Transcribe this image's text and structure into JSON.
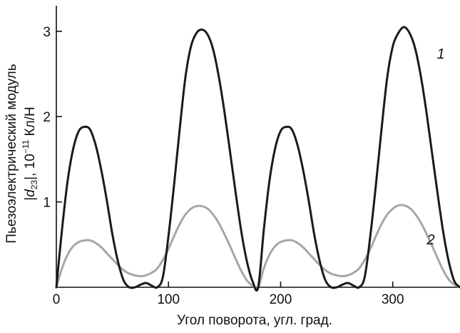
{
  "chart_data": {
    "type": "line",
    "xlabel": "Угол поворота, угл. град.",
    "ylabel_line1": "Пьезоэлектрический модуль",
    "ylabel_line2": {
      "prefix": "|",
      "symbol": "d",
      "subscript": "23",
      "suffix": "|, 10",
      "exponent": "−11",
      "unit": " Кл/Н"
    },
    "xlim": [
      0,
      360
    ],
    "ylim": [
      0,
      3.3
    ],
    "xticks": [
      0,
      100,
      200,
      300
    ],
    "yticks": [
      1,
      2,
      3
    ],
    "xtick_labels": [
      "0",
      "100",
      "200",
      "300"
    ],
    "ytick_labels": [
      "1",
      "2",
      "3"
    ],
    "grid": false,
    "series": [
      {
        "label": "1",
        "color": "#1a1a1a",
        "x": [
          0,
          5,
          10,
          15,
          20,
          25,
          30,
          35,
          40,
          45,
          50,
          55,
          60,
          65,
          70,
          75,
          80,
          85,
          90,
          95,
          100,
          105,
          110,
          115,
          120,
          125,
          130,
          135,
          140,
          145,
          150,
          155,
          160,
          165,
          170,
          175,
          180,
          185,
          190,
          195,
          200,
          205,
          210,
          215,
          220,
          225,
          230,
          235,
          240,
          245,
          250,
          255,
          260,
          265,
          270,
          275,
          280,
          285,
          290,
          295,
          300,
          305,
          310,
          315,
          320,
          325,
          330,
          335,
          340,
          345,
          350,
          355,
          360
        ],
        "y": [
          0.0,
          0.67,
          1.24,
          1.62,
          1.83,
          1.88,
          1.85,
          1.67,
          1.38,
          1.02,
          0.62,
          0.3,
          0.08,
          0.0,
          0.0,
          0.03,
          0.05,
          0.02,
          0.0,
          0.12,
          0.6,
          1.2,
          1.85,
          2.45,
          2.82,
          2.98,
          3.02,
          2.96,
          2.78,
          2.46,
          2.05,
          1.58,
          1.1,
          0.65,
          0.3,
          0.07,
          0.0,
          0.67,
          1.24,
          1.62,
          1.83,
          1.88,
          1.85,
          1.67,
          1.38,
          1.02,
          0.62,
          0.3,
          0.08,
          0.0,
          0.0,
          0.03,
          0.05,
          0.02,
          0.0,
          0.12,
          0.6,
          1.2,
          1.85,
          2.45,
          2.82,
          2.98,
          3.05,
          2.98,
          2.8,
          2.48,
          2.06,
          1.58,
          1.1,
          0.65,
          0.3,
          0.07,
          0.0
        ]
      },
      {
        "label": "2",
        "color": "#a6a6a6",
        "x": [
          0,
          5,
          10,
          15,
          20,
          25,
          30,
          35,
          40,
          45,
          50,
          55,
          60,
          65,
          70,
          75,
          80,
          85,
          90,
          95,
          100,
          105,
          110,
          115,
          120,
          125,
          130,
          135,
          140,
          145,
          150,
          155,
          160,
          165,
          170,
          175,
          180,
          185,
          190,
          195,
          200,
          205,
          210,
          215,
          220,
          225,
          230,
          235,
          240,
          245,
          250,
          255,
          260,
          265,
          270,
          275,
          280,
          285,
          290,
          295,
          300,
          305,
          310,
          315,
          320,
          325,
          330,
          335,
          340,
          345,
          350,
          355,
          360
        ],
        "y": [
          0.0,
          0.22,
          0.38,
          0.48,
          0.53,
          0.55,
          0.55,
          0.52,
          0.47,
          0.4,
          0.33,
          0.26,
          0.2,
          0.16,
          0.14,
          0.13,
          0.14,
          0.17,
          0.22,
          0.32,
          0.45,
          0.6,
          0.74,
          0.85,
          0.92,
          0.95,
          0.95,
          0.92,
          0.85,
          0.75,
          0.62,
          0.48,
          0.33,
          0.19,
          0.08,
          0.02,
          0.0,
          0.22,
          0.38,
          0.48,
          0.53,
          0.55,
          0.55,
          0.52,
          0.47,
          0.4,
          0.33,
          0.26,
          0.2,
          0.16,
          0.14,
          0.13,
          0.14,
          0.17,
          0.22,
          0.32,
          0.45,
          0.6,
          0.74,
          0.85,
          0.92,
          0.96,
          0.96,
          0.93,
          0.86,
          0.76,
          0.63,
          0.49,
          0.34,
          0.2,
          0.09,
          0.03,
          0.0
        ]
      }
    ]
  }
}
